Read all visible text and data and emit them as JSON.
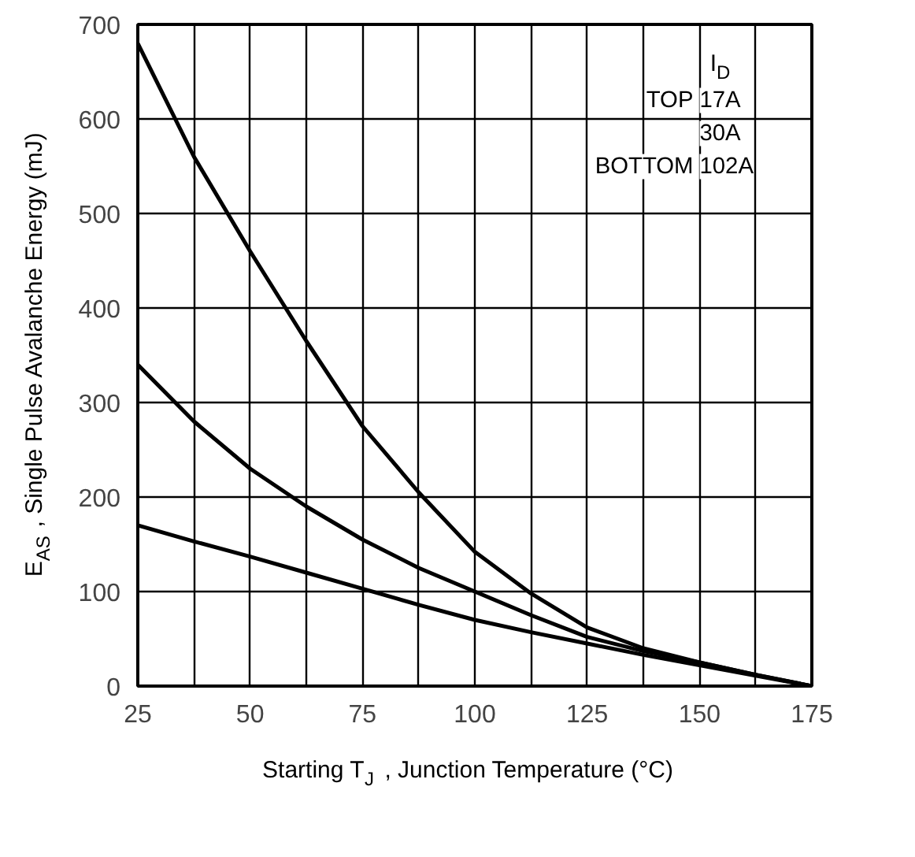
{
  "chart_data": {
    "type": "line",
    "xlabel": "Starting T$_{J}$ , Junction Temperature (°C)",
    "ylabel": "E$_{AS}$ , Single Pulse Avalanche Energy (mJ)",
    "legend_title": "I$_{D}$",
    "grid": true,
    "line_style": "solid",
    "marker": "none",
    "x": [
      25,
      37.5,
      50,
      62.5,
      75,
      87.5,
      100,
      112.5,
      125,
      137.5,
      150,
      162.5,
      175
    ],
    "series": [
      {
        "color": "#000000",
        "values": [
          680,
          560,
          460,
          365,
          275,
          205,
          142,
          98,
          62,
          40,
          25,
          12,
          0
        ]
      },
      {
        "color": "#000000",
        "values": [
          340,
          280,
          230,
          190,
          155,
          125,
          100,
          75,
          52,
          37,
          25,
          12,
          0
        ]
      },
      {
        "color": "#000000",
        "values": [
          170,
          153,
          137,
          120,
          103,
          86,
          70,
          57,
          45,
          33,
          22,
          11,
          0
        ]
      }
    ],
    "annotations": [
      "TOP 17A",
      "30A",
      "BOTTOM 102A"
    ],
    "xlim": [
      25,
      175
    ],
    "ylim": [
      0,
      700
    ],
    "xticks": [
      25,
      {
        "value": 37.5,
        "label": null
      },
      50,
      {
        "value": 62.5,
        "label": null
      },
      75,
      {
        "value": 87.5,
        "label": null
      },
      100,
      {
        "value": 112.5,
        "label": null
      },
      125,
      {
        "value": 137.5,
        "label": null
      },
      150,
      {
        "value": 162.5,
        "label": null
      },
      175
    ],
    "yticks": [
      0,
      100,
      200,
      300,
      400,
      500,
      600,
      700
    ]
  }
}
